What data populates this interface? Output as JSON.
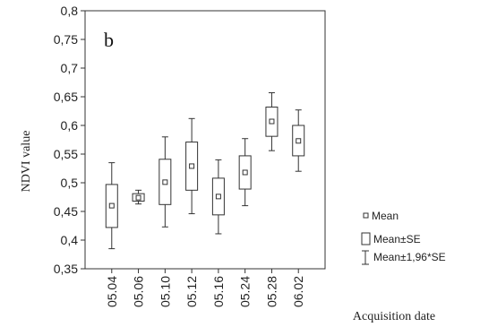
{
  "chart_data": {
    "type": "box",
    "panel_label": "b",
    "xlabel": "Acquisition date",
    "ylabel": "NDVI value",
    "ylim": [
      0.35,
      0.8
    ],
    "yticks": [
      "0,35",
      "0,4",
      "0,45",
      "0,5",
      "0,55",
      "0,6",
      "0,65",
      "0,7",
      "0,75",
      "0,8"
    ],
    "categories": [
      "05.04",
      "05.06",
      "05.10",
      "05.12",
      "05.16",
      "05.24",
      "05.28",
      "06.02"
    ],
    "series": [
      {
        "mean": 0.46,
        "se_low": 0.422,
        "se_high": 0.497,
        "ci_low": 0.385,
        "ci_high": 0.535
      },
      {
        "mean": 0.474,
        "se_low": 0.468,
        "se_high": 0.481,
        "ci_low": 0.463,
        "ci_high": 0.487
      },
      {
        "mean": 0.501,
        "se_low": 0.462,
        "se_high": 0.541,
        "ci_low": 0.423,
        "ci_high": 0.58
      },
      {
        "mean": 0.529,
        "se_low": 0.487,
        "se_high": 0.571,
        "ci_low": 0.446,
        "ci_high": 0.612
      },
      {
        "mean": 0.476,
        "se_low": 0.444,
        "se_high": 0.508,
        "ci_low": 0.411,
        "ci_high": 0.54
      },
      {
        "mean": 0.518,
        "se_low": 0.489,
        "se_high": 0.547,
        "ci_low": 0.46,
        "ci_high": 0.577
      },
      {
        "mean": 0.607,
        "se_low": 0.581,
        "se_high": 0.632,
        "ci_low": 0.556,
        "ci_high": 0.657
      },
      {
        "mean": 0.573,
        "se_low": 0.547,
        "se_high": 0.6,
        "ci_low": 0.52,
        "ci_high": 0.627
      }
    ],
    "legend": {
      "placement": "bottom-right",
      "items": [
        "Mean",
        "Mean±SE",
        "Mean±1,96*SE"
      ]
    },
    "grid": false
  }
}
